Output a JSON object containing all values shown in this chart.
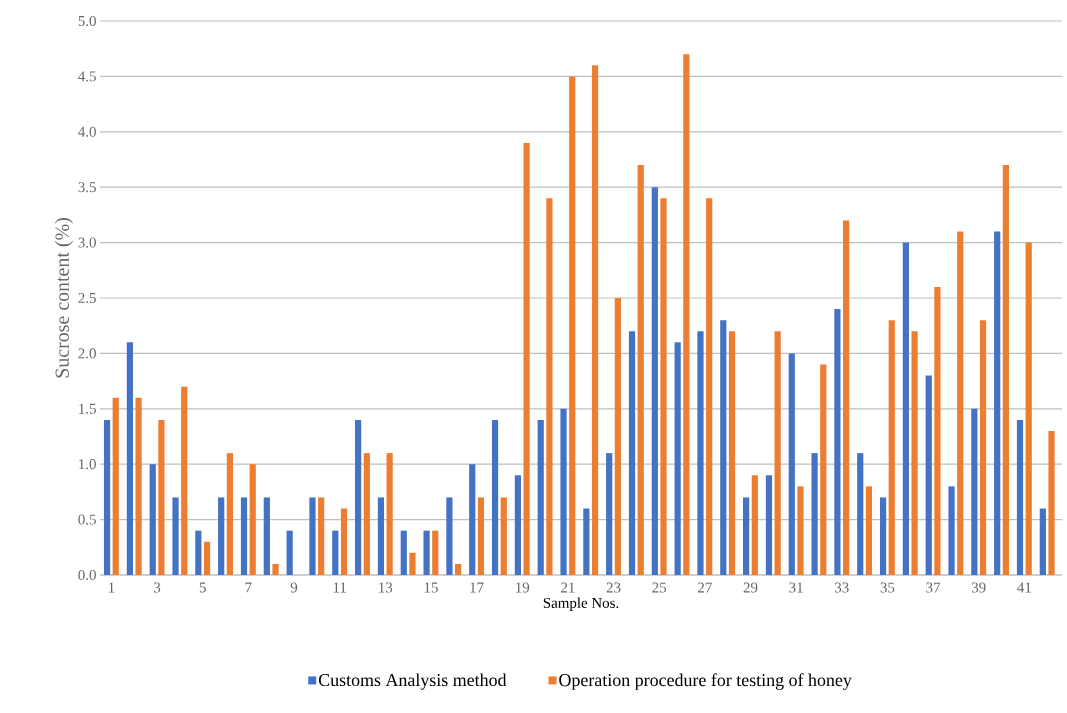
{
  "chart_data": {
    "type": "bar",
    "xlabel": "Sample Nos.",
    "ylabel": "Sucrose content (%)",
    "categories": [
      "1",
      null,
      "3",
      null,
      "5",
      null,
      "7",
      null,
      "9",
      null,
      "11",
      null,
      "13",
      null,
      "15",
      null,
      "17",
      null,
      "19",
      null,
      "21",
      null,
      "23",
      null,
      "25",
      null,
      "27",
      null,
      "29",
      null,
      "31",
      null,
      "33",
      null,
      "35",
      null,
      "37",
      null,
      "39",
      null,
      "41",
      null
    ],
    "series": [
      {
        "name": "Customs Analysis method",
        "color": "#4472c4",
        "values": [
          1.4,
          2.1,
          1.0,
          0.7,
          0.4,
          0.7,
          0.7,
          0.7,
          0.4,
          0.7,
          0.4,
          1.4,
          0.7,
          0.4,
          0.4,
          0.7,
          1.0,
          1.4,
          0.9,
          1.4,
          1.5,
          0.6,
          1.1,
          2.2,
          3.5,
          2.1,
          2.2,
          2.3,
          0.7,
          0.9,
          2.0,
          1.1,
          2.4,
          1.1,
          0.7,
          3.0,
          1.8,
          0.8,
          1.5,
          3.1,
          1.4,
          0.6
        ]
      },
      {
        "name": "Operation procedure for testing of honey",
        "color": "#ed7d31",
        "values": [
          1.6,
          1.6,
          1.4,
          1.7,
          0.3,
          1.1,
          1.0,
          0.1,
          0,
          0.7,
          0.6,
          1.1,
          1.1,
          0.2,
          0.4,
          0.1,
          0.7,
          0.7,
          3.9,
          3.4,
          4.5,
          4.6,
          2.5,
          3.7,
          3.4,
          4.7,
          3.4,
          2.2,
          0.9,
          2.2,
          0.8,
          1.9,
          3.2,
          0.8,
          2.3,
          2.2,
          2.6,
          3.1,
          2.3,
          3.7,
          3.0,
          1.3
        ]
      }
    ],
    "ylim": [
      0,
      5.0
    ],
    "yticks": [
      {
        "value": 0,
        "label": "0.0"
      },
      {
        "value": 0.5,
        "label": "0.5"
      },
      {
        "value": 1,
        "label": "1.0"
      },
      {
        "value": 1.5,
        "label": "1.5"
      },
      {
        "value": 2,
        "label": "2.0"
      },
      {
        "value": 2.5,
        "label": "2.5"
      },
      {
        "value": 3,
        "label": "3.0"
      },
      {
        "value": 3.5,
        "label": "3.5"
      },
      {
        "value": 4,
        "label": "4.0"
      },
      {
        "value": 4.5,
        "label": "4.5"
      },
      {
        "value": 5,
        "label": "5.0"
      }
    ],
    "grid": "y",
    "legend": "bottom"
  }
}
